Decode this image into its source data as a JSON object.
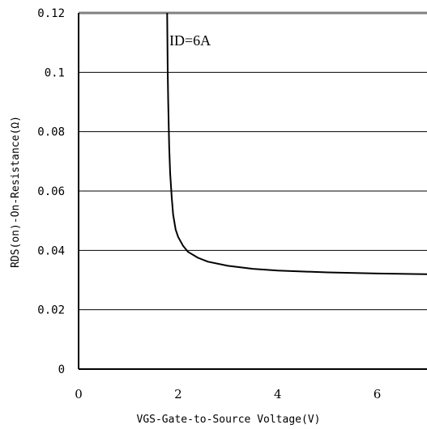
{
  "chart_data": {
    "type": "line",
    "xlabel": "VGS-Gate-to-Source Voltage(V)",
    "ylabel": "RDS(on)-On-Resistance(Ω)",
    "xlim": [
      0,
      7
    ],
    "ylim": [
      0,
      0.12
    ],
    "x_ticks": [
      "0",
      "2",
      "4",
      "6"
    ],
    "y_ticks": [
      "0",
      "0.02",
      "0.04",
      "0.06",
      "0.08",
      "0.1",
      "0.12"
    ],
    "grid": "horizontal",
    "annotation": "ID=6A",
    "series": [
      {
        "color": "#000000",
        "x": [
          1.78,
          1.79,
          1.8,
          1.82,
          1.84,
          1.87,
          1.9,
          1.95,
          2.0,
          2.1,
          2.2,
          2.4,
          2.6,
          3.0,
          3.5,
          4.0,
          5.0,
          6.0,
          7.0
        ],
        "y": [
          0.12,
          0.1,
          0.09,
          0.075,
          0.066,
          0.058,
          0.052,
          0.047,
          0.0445,
          0.0415,
          0.0395,
          0.0375,
          0.0362,
          0.0348,
          0.0338,
          0.0332,
          0.0326,
          0.0322,
          0.032
        ]
      }
    ]
  }
}
